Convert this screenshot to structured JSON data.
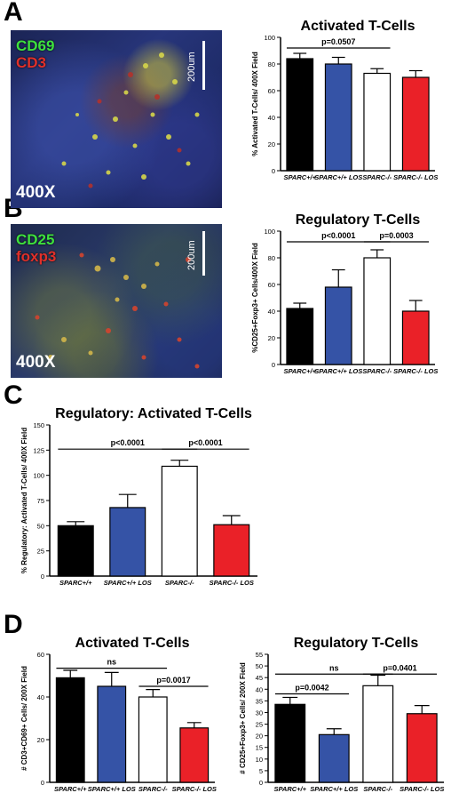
{
  "panels": {
    "a": {
      "letter": "A",
      "marker1": "CD69",
      "marker2": "CD3",
      "scale": "200um",
      "magnification": "400X"
    },
    "b": {
      "letter": "B",
      "marker1": "CD25",
      "marker2": "foxp3",
      "scale": "200um",
      "magnification": "400X"
    },
    "c": {
      "letter": "C"
    },
    "d": {
      "letter": "D"
    }
  },
  "colors": {
    "black": "#000000",
    "blue": "#3553a6",
    "white": "#ffffff",
    "red": "#ea2128",
    "green_label": "#3ee03e",
    "red_label": "#e0302a"
  },
  "chart_data": [
    {
      "id": "chart-a",
      "type": "bar",
      "title": "Activated T-Cells",
      "ylabel": "% Activated T-Cells/ 400X Field",
      "categories": [
        "SPARC+/+",
        "SPARC+/+ LOS",
        "SPARC-/-",
        "SPARC-/- LOS"
      ],
      "values": [
        84,
        80,
        73,
        70
      ],
      "errors": [
        4,
        5,
        3.5,
        5
      ],
      "bar_colors": [
        "#000000",
        "#3553a6",
        "#ffffff",
        "#ea2128"
      ],
      "ylim": [
        0,
        100
      ],
      "yticks": [
        0,
        20,
        40,
        60,
        80,
        100
      ],
      "brackets": [
        {
          "from": 0,
          "to": 2,
          "y": 92,
          "label": "p=0.0507"
        }
      ]
    },
    {
      "id": "chart-b",
      "type": "bar",
      "title": "Regulatory T-Cells",
      "ylabel": "%CD25+Foxp3+ Cells/400X Field",
      "categories": [
        "SPARC+/+",
        "SPARC+/+ LOS",
        "SPARC-/-",
        "SPARC-/- LOS"
      ],
      "values": [
        42,
        58,
        80,
        40
      ],
      "errors": [
        4,
        13,
        6,
        8
      ],
      "bar_colors": [
        "#000000",
        "#3553a6",
        "#ffffff",
        "#ea2128"
      ],
      "ylim": [
        0,
        100
      ],
      "yticks": [
        0,
        20,
        40,
        60,
        80,
        100
      ],
      "brackets": [
        {
          "from": 0,
          "to": 2,
          "y": 92,
          "label": "p<0.0001"
        },
        {
          "from": 2,
          "to": 3,
          "y": 92,
          "label": "p=0.0003"
        }
      ]
    },
    {
      "id": "chart-c",
      "type": "bar",
      "title": "Regulatory: Activated T-Cells",
      "ylabel": "% Regulatory: Activated T-Cells/ 400X Field",
      "categories": [
        "SPARC+/+",
        "SPARC+/+ LOS",
        "SPARC-/-",
        "SPARC-/- LOS"
      ],
      "values": [
        50,
        68,
        109,
        51
      ],
      "errors": [
        4,
        13,
        6,
        9
      ],
      "bar_colors": [
        "#000000",
        "#3553a6",
        "#ffffff",
        "#ea2128"
      ],
      "ylim": [
        0,
        150
      ],
      "yticks": [
        0,
        25,
        50,
        75,
        100,
        125,
        150
      ],
      "brackets": [
        {
          "from": 0,
          "to": 2,
          "y": 126,
          "label": "p<0.0001"
        },
        {
          "from": 2,
          "to": 3,
          "y": 126,
          "label": "p<0.0001"
        }
      ]
    },
    {
      "id": "chart-d1",
      "type": "bar",
      "title": "Activated T-Cells",
      "ylabel": "# CD3+CD69+ Cells/ 200X Field",
      "categories": [
        "SPARC+/+",
        "SPARC+/+ LOS",
        "SPARC-/-",
        "SPARC-/- LOS"
      ],
      "values": [
        49,
        45,
        40,
        25.5
      ],
      "errors": [
        3.5,
        6.5,
        3.5,
        2.5
      ],
      "bar_colors": [
        "#000000",
        "#3553a6",
        "#ffffff",
        "#ea2128"
      ],
      "ylim": [
        0,
        60
      ],
      "yticks": [
        0,
        20,
        40,
        60
      ],
      "brackets": [
        {
          "from": 0,
          "to": 2,
          "y": 53.5,
          "label": "ns"
        },
        {
          "from": 2,
          "to": 3,
          "y": 45,
          "label": "p=0.0017"
        }
      ]
    },
    {
      "id": "chart-d2",
      "type": "bar",
      "title": "Regulatory T-Cells",
      "ylabel": "# CD25+Foxp3+ Cells/ 200X Field",
      "categories": [
        "SPARC+/+",
        "SPARC+/+ LOS",
        "SPARC-/-",
        "SPARC-/- LOS"
      ],
      "values": [
        33.5,
        20.5,
        41.5,
        29.5
      ],
      "errors": [
        3,
        2.5,
        4.5,
        3.5
      ],
      "bar_colors": [
        "#000000",
        "#3553a6",
        "#ffffff",
        "#ea2128"
      ],
      "ylim": [
        0,
        55
      ],
      "yticks": [
        0,
        5,
        10,
        15,
        20,
        25,
        30,
        35,
        40,
        45,
        50,
        55
      ],
      "brackets": [
        {
          "from": 0,
          "to": 2,
          "y": 46.5,
          "label": "ns"
        },
        {
          "from": 2,
          "to": 3,
          "y": 46.5,
          "label": "p=0.0401"
        },
        {
          "from": 0,
          "to": 1,
          "y": 38,
          "label": "p=0.0042"
        }
      ]
    }
  ]
}
